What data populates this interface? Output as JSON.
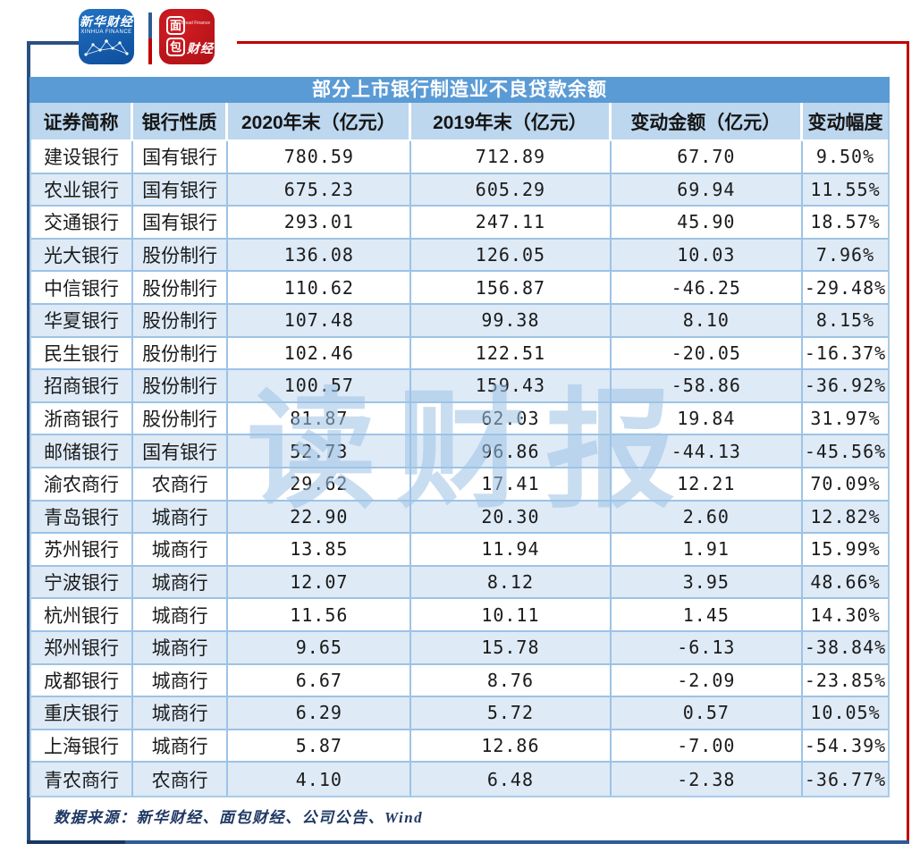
{
  "title": "部分上市银行制造业不良贷款余额",
  "watermark": "读财报",
  "branding": {
    "xinhua": {
      "name": "新华财经",
      "subtitle": "XINHUA FINANCE"
    },
    "bread": {
      "char1": "面",
      "char2": "包",
      "caijing": "财经",
      "subtext": "Bread Finance"
    }
  },
  "chart_data": {
    "type": "table",
    "title": "部分上市银行制造业不良贷款余额",
    "columns": [
      "证券简称",
      "银行性质",
      "2020年末（亿元）",
      "2019年末（亿元）",
      "变动金额（亿元）",
      "变动幅度"
    ],
    "rows": [
      [
        "建设银行",
        "国有银行",
        "780.59",
        "712.89",
        "67.70",
        "9.50%"
      ],
      [
        "农业银行",
        "国有银行",
        "675.23",
        "605.29",
        "69.94",
        "11.55%"
      ],
      [
        "交通银行",
        "国有银行",
        "293.01",
        "247.11",
        "45.90",
        "18.57%"
      ],
      [
        "光大银行",
        "股份制行",
        "136.08",
        "126.05",
        "10.03",
        "7.96%"
      ],
      [
        "中信银行",
        "股份制行",
        "110.62",
        "156.87",
        "-46.25",
        "-29.48%"
      ],
      [
        "华夏银行",
        "股份制行",
        "107.48",
        "99.38",
        "8.10",
        "8.15%"
      ],
      [
        "民生银行",
        "股份制行",
        "102.46",
        "122.51",
        "-20.05",
        "-16.37%"
      ],
      [
        "招商银行",
        "股份制行",
        "100.57",
        "159.43",
        "-58.86",
        "-36.92%"
      ],
      [
        "浙商银行",
        "股份制行",
        "81.87",
        "62.03",
        "19.84",
        "31.97%"
      ],
      [
        "邮储银行",
        "国有银行",
        "52.73",
        "96.86",
        "-44.13",
        "-45.56%"
      ],
      [
        "渝农商行",
        "农商行",
        "29.62",
        "17.41",
        "12.21",
        "70.09%"
      ],
      [
        "青岛银行",
        "城商行",
        "22.90",
        "20.30",
        "2.60",
        "12.82%"
      ],
      [
        "苏州银行",
        "城商行",
        "13.85",
        "11.94",
        "1.91",
        "15.99%"
      ],
      [
        "宁波银行",
        "城商行",
        "12.07",
        "8.12",
        "3.95",
        "48.66%"
      ],
      [
        "杭州银行",
        "城商行",
        "11.56",
        "10.11",
        "1.45",
        "14.30%"
      ],
      [
        "郑州银行",
        "城商行",
        "9.65",
        "15.78",
        "-6.13",
        "-38.84%"
      ],
      [
        "成都银行",
        "城商行",
        "6.67",
        "8.76",
        "-2.09",
        "-23.85%"
      ],
      [
        "重庆银行",
        "城商行",
        "6.29",
        "5.72",
        "0.57",
        "10.05%"
      ],
      [
        "上海银行",
        "城商行",
        "5.87",
        "12.86",
        "-7.00",
        "-54.39%"
      ],
      [
        "青农商行",
        "农商行",
        "4.10",
        "6.48",
        "-2.38",
        "-36.77%"
      ]
    ]
  },
  "footer": {
    "source": "数据来源：新华财经、面包财经、公司公告、Wind"
  },
  "colors": {
    "title_bar": "#5B9BD5",
    "header_row": "#BDD7EE",
    "stripe_row": "#DEEAF6",
    "cell_border": "#9DC3E6",
    "frame_blue": "#2A5080",
    "frame_red": "#C00000",
    "bottom_navy": "#17375E",
    "watermark_blue": "#9DC3E6",
    "source_text": "#1F3864",
    "xinhua_logo_blue": "#0D4E9B",
    "bread_logo_red": "#C4151C"
  }
}
